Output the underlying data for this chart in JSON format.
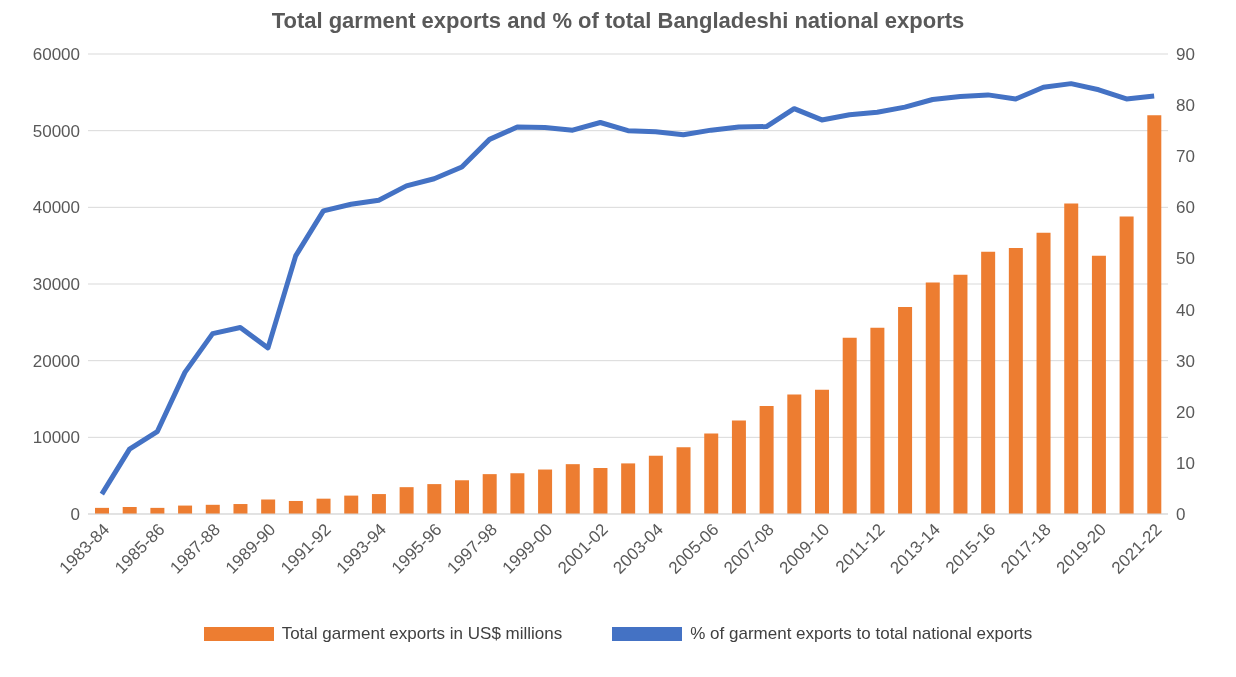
{
  "chart_data": {
    "type": "bar",
    "title": "Total garment exports and % of total Bangladeshi national exports",
    "categories": [
      "1983-84",
      null,
      "1985-86",
      null,
      "1987-88",
      null,
      "1989-90",
      null,
      "1991-92",
      null,
      "1993-94",
      null,
      "1995-96",
      null,
      "1997-98",
      null,
      "1999-00",
      null,
      "2001-02",
      null,
      "2003-04",
      null,
      "2005-06",
      null,
      "2007-08",
      null,
      "2009-10",
      null,
      "2011-12",
      null,
      "2013-14",
      null,
      "2015-16",
      null,
      "2017-18",
      null,
      "2019-20",
      null,
      "2021-22"
    ],
    "series": [
      {
        "name": "Total garment exports in US$ millions",
        "color": "#ed7d31",
        "values": [
          800,
          900,
          800,
          1100,
          1200,
          1300,
          1900,
          1700,
          2000,
          2400,
          2600,
          3500,
          3900,
          4400,
          5200,
          5300,
          5800,
          6500,
          6000,
          6600,
          7600,
          8700,
          10500,
          12200,
          14100,
          15600,
          16200,
          23000,
          24300,
          27000,
          30200,
          31200,
          34200,
          34700,
          36700,
          40500,
          33700,
          38800,
          52000
        ]
      },
      {
        "name": "% of garment exports to total national exports",
        "type": "line",
        "axis": "y2",
        "color": "#4472c4",
        "values": [
          3.9,
          12.7,
          16.1,
          27.7,
          35.3,
          36.5,
          32.5,
          50.5,
          59.3,
          60.6,
          61.4,
          64.2,
          65.6,
          67.9,
          73.3,
          75.7,
          75.6,
          75.1,
          76.6,
          75.0,
          74.8,
          74.2,
          75.1,
          75.7,
          75.8,
          79.3,
          77.1,
          78.1,
          78.6,
          79.6,
          81.1,
          81.7,
          82.0,
          81.2,
          83.5,
          84.2,
          83.0,
          81.2,
          81.8
        ]
      }
    ],
    "ylim": [
      0,
      60000
    ],
    "yticks": [
      0,
      10000,
      20000,
      30000,
      40000,
      50000,
      60000
    ],
    "y2lim": [
      0,
      90
    ],
    "y2ticks": [
      0,
      10,
      20,
      30,
      40,
      50,
      60,
      70,
      80,
      90
    ],
    "grid": "y",
    "legend": "bottom",
    "marker": "none"
  }
}
